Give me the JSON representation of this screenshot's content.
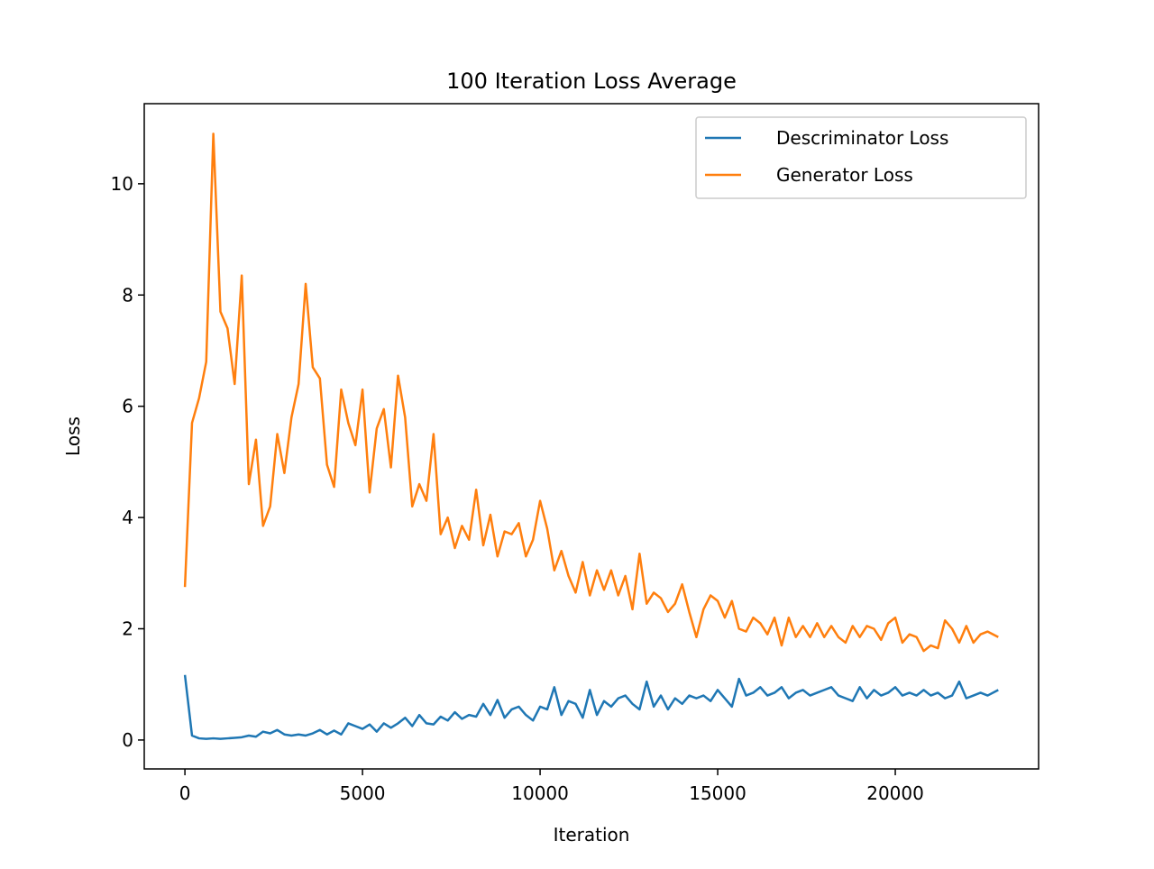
{
  "chart_data": {
    "type": "line",
    "title": "100 Iteration Loss Average",
    "x_label": "Iteration",
    "y_label": "Loss",
    "x": [
      0,
      200,
      400,
      600,
      800,
      1000,
      1200,
      1400,
      1600,
      1800,
      2000,
      2200,
      2400,
      2600,
      2800,
      3000,
      3200,
      3400,
      3600,
      3800,
      4000,
      4200,
      4400,
      4600,
      4800,
      5000,
      5200,
      5400,
      5600,
      5800,
      6000,
      6200,
      6400,
      6600,
      6800,
      7000,
      7200,
      7400,
      7600,
      7800,
      8000,
      8200,
      8400,
      8600,
      8800,
      9000,
      9200,
      9400,
      9600,
      9800,
      10000,
      10200,
      10400,
      10600,
      10800,
      11000,
      11200,
      11400,
      11600,
      11800,
      12000,
      12200,
      12400,
      12600,
      12800,
      13000,
      13200,
      13400,
      13600,
      13800,
      14000,
      14200,
      14400,
      14600,
      14800,
      15000,
      15200,
      15400,
      15600,
      15800,
      16000,
      16200,
      16400,
      16600,
      16800,
      17000,
      17200,
      17400,
      17600,
      17800,
      18000,
      18200,
      18400,
      18600,
      18800,
      19000,
      19200,
      19400,
      19600,
      19800,
      20000,
      20200,
      20400,
      20600,
      20800,
      21000,
      21200,
      21400,
      21600,
      21800,
      22000,
      22200,
      22400,
      22600,
      22900
    ],
    "series": [
      {
        "name": "Descriminator Loss",
        "color": "#1f77b4",
        "values": [
          1.17,
          0.08,
          0.03,
          0.02,
          0.03,
          0.02,
          0.03,
          0.04,
          0.05,
          0.08,
          0.06,
          0.15,
          0.12,
          0.18,
          0.1,
          0.08,
          0.1,
          0.08,
          0.12,
          0.18,
          0.1,
          0.17,
          0.1,
          0.3,
          0.25,
          0.2,
          0.28,
          0.15,
          0.3,
          0.22,
          0.3,
          0.4,
          0.25,
          0.45,
          0.3,
          0.28,
          0.42,
          0.35,
          0.5,
          0.38,
          0.45,
          0.42,
          0.65,
          0.45,
          0.72,
          0.4,
          0.55,
          0.6,
          0.45,
          0.35,
          0.6,
          0.55,
          0.95,
          0.45,
          0.7,
          0.65,
          0.4,
          0.9,
          0.45,
          0.7,
          0.6,
          0.75,
          0.8,
          0.65,
          0.55,
          1.05,
          0.6,
          0.8,
          0.55,
          0.75,
          0.65,
          0.8,
          0.75,
          0.8,
          0.7,
          0.9,
          0.75,
          0.6,
          1.1,
          0.8,
          0.85,
          0.95,
          0.8,
          0.85,
          0.95,
          0.75,
          0.85,
          0.9,
          0.8,
          0.85,
          0.9,
          0.95,
          0.8,
          0.75,
          0.7,
          0.95,
          0.75,
          0.9,
          0.8,
          0.85,
          0.95,
          0.8,
          0.85,
          0.8,
          0.9,
          0.8,
          0.85,
          0.75,
          0.8,
          1.05,
          0.75,
          0.8,
          0.85,
          0.8,
          0.9
        ]
      },
      {
        "name": "Generator Loss",
        "color": "#ff7f0e",
        "values": [
          2.75,
          5.7,
          6.15,
          6.8,
          10.9,
          7.7,
          7.4,
          6.4,
          8.35,
          4.6,
          5.4,
          3.85,
          4.2,
          5.5,
          4.8,
          5.8,
          6.4,
          8.2,
          6.7,
          6.5,
          4.95,
          4.55,
          6.3,
          5.7,
          5.3,
          6.3,
          4.45,
          5.6,
          5.95,
          4.9,
          6.55,
          5.8,
          4.2,
          4.6,
          4.3,
          5.5,
          3.7,
          4.0,
          3.45,
          3.85,
          3.6,
          4.5,
          3.5,
          4.05,
          3.3,
          3.75,
          3.7,
          3.9,
          3.3,
          3.6,
          4.3,
          3.8,
          3.05,
          3.4,
          2.95,
          2.65,
          3.2,
          2.6,
          3.05,
          2.7,
          3.05,
          2.6,
          2.95,
          2.35,
          3.35,
          2.45,
          2.65,
          2.55,
          2.3,
          2.45,
          2.8,
          2.3,
          1.85,
          2.35,
          2.6,
          2.5,
          2.2,
          2.5,
          2.0,
          1.95,
          2.2,
          2.1,
          1.9,
          2.2,
          1.7,
          2.2,
          1.85,
          2.05,
          1.85,
          2.1,
          1.85,
          2.05,
          1.85,
          1.75,
          2.05,
          1.85,
          2.05,
          2.0,
          1.8,
          2.1,
          2.2,
          1.75,
          1.9,
          1.85,
          1.6,
          1.7,
          1.65,
          2.15,
          2.0,
          1.75,
          2.05,
          1.75,
          1.9,
          1.95,
          1.85
        ]
      }
    ],
    "xlim": [
      -1145,
      24035
    ],
    "ylim": [
      -0.52,
      11.44
    ],
    "xticks": [
      0,
      5000,
      10000,
      15000,
      20000
    ],
    "yticks": [
      0,
      2,
      4,
      6,
      8,
      10
    ],
    "legend": "upper right"
  }
}
